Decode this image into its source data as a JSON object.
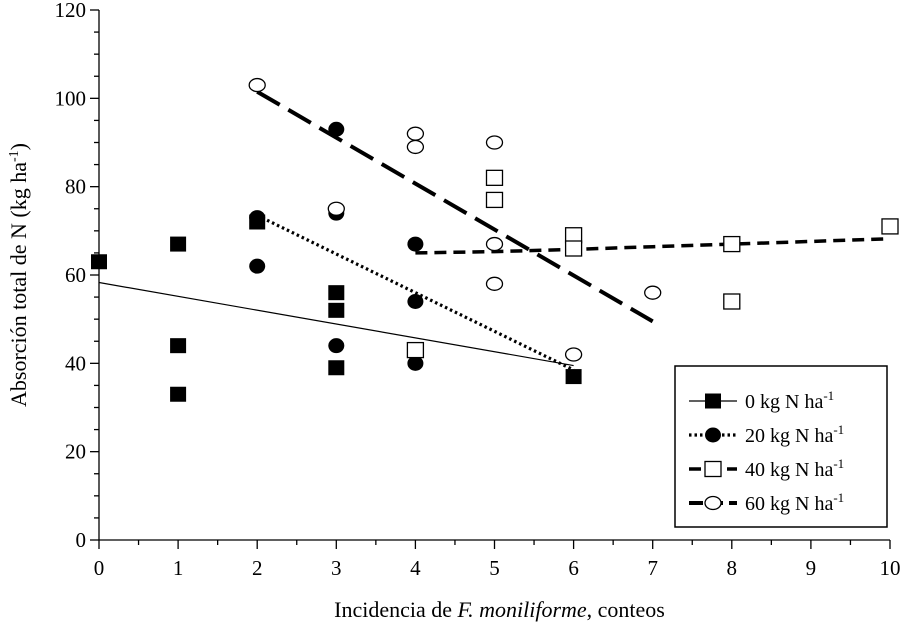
{
  "chart_data": {
    "type": "scatter",
    "xlabel_parts": [
      "Incidencia de ",
      "F. moniliforme",
      ", conteos"
    ],
    "ylabel_parts": [
      "Absorción total de N (kg ha",
      "-1",
      ")"
    ],
    "xlim": [
      0,
      10
    ],
    "ylim": [
      0,
      120
    ],
    "x_ticks": [
      "0",
      "1",
      "2",
      "3",
      "4",
      "5",
      "6",
      "7",
      "8",
      "9",
      "10"
    ],
    "y_ticks": [
      "0",
      "20",
      "40",
      "60",
      "80",
      "100",
      "120"
    ],
    "legend_position": "bottom-right",
    "series": [
      {
        "name": "0 kg N ha",
        "superscript": "-1",
        "marker": "filled-square",
        "line_style": "solid-thin",
        "points": [
          [
            0,
            63
          ],
          [
            1,
            67
          ],
          [
            1,
            44
          ],
          [
            1,
            33
          ],
          [
            2,
            72
          ],
          [
            3,
            56
          ],
          [
            3,
            52
          ],
          [
            3,
            39
          ],
          [
            6,
            37
          ]
        ],
        "fit": [
          [
            0,
            58.3
          ],
          [
            6,
            39.5
          ]
        ]
      },
      {
        "name": "20 kg N ha",
        "superscript": "-1",
        "marker": "filled-circle",
        "line_style": "dotted",
        "points": [
          [
            2,
            73
          ],
          [
            2,
            62
          ],
          [
            3,
            93
          ],
          [
            3,
            74
          ],
          [
            3,
            44
          ],
          [
            4,
            67
          ],
          [
            4,
            54
          ],
          [
            4,
            40
          ]
        ],
        "fit": [
          [
            2,
            73.5
          ],
          [
            6,
            38.5
          ]
        ]
      },
      {
        "name": "40 kg N ha",
        "superscript": "-1",
        "marker": "open-square",
        "line_style": "short-dash",
        "points": [
          [
            4,
            43
          ],
          [
            5,
            82
          ],
          [
            5,
            77
          ],
          [
            6,
            69
          ],
          [
            6,
            66
          ],
          [
            8,
            67
          ],
          [
            8,
            54
          ],
          [
            10,
            71
          ]
        ],
        "fit": [
          [
            4,
            65
          ],
          [
            5,
            65.3
          ],
          [
            6,
            65.8
          ],
          [
            7,
            66.4
          ],
          [
            8,
            67
          ],
          [
            9,
            67.6
          ],
          [
            10,
            68.2
          ]
        ]
      },
      {
        "name": "60 kg N ha",
        "superscript": "-1",
        "marker": "open-circle",
        "line_style": "long-dash",
        "points": [
          [
            2,
            103
          ],
          [
            3,
            75
          ],
          [
            4,
            92
          ],
          [
            4,
            89
          ],
          [
            5,
            90
          ],
          [
            5,
            67
          ],
          [
            5,
            58
          ],
          [
            6,
            42
          ],
          [
            7,
            56
          ]
        ],
        "fit": [
          [
            2,
            101.5
          ],
          [
            7,
            49.5
          ]
        ]
      }
    ]
  }
}
